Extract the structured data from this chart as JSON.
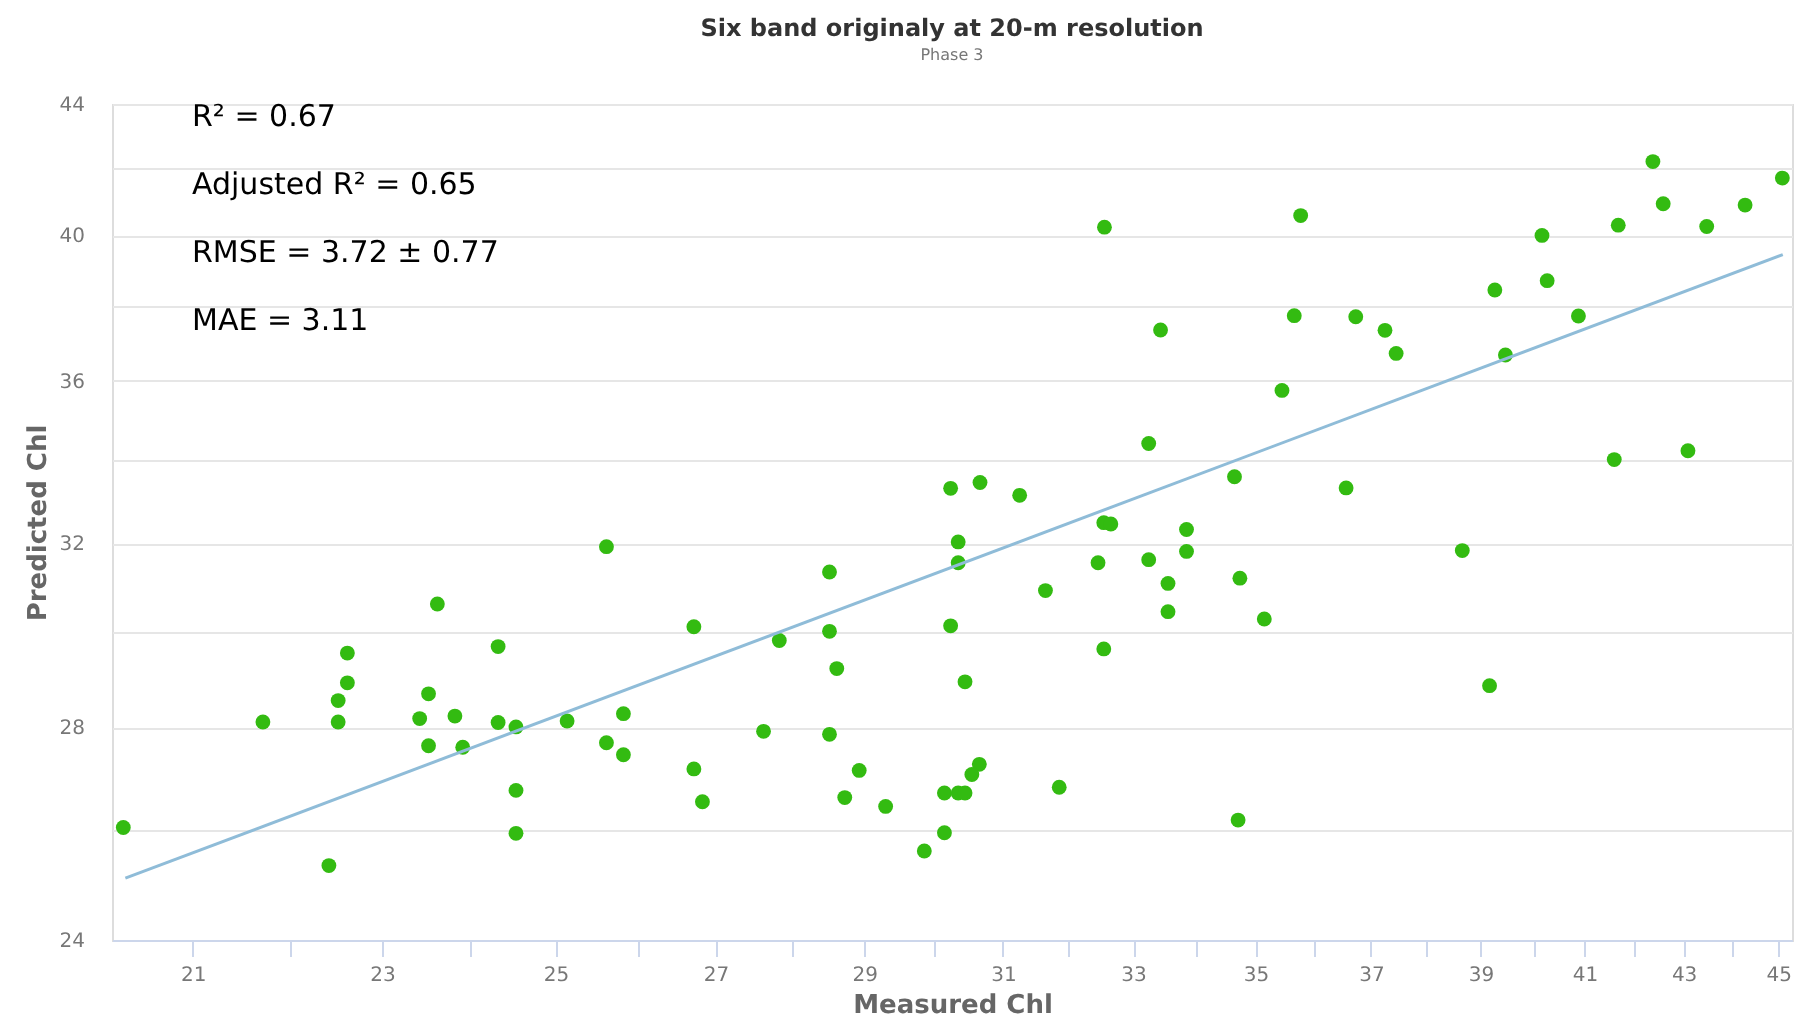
{
  "chart_data": {
    "type": "scatter",
    "title": "Six band originaly at 20-m resolution",
    "subtitle": "Phase 3",
    "xlabel": "Measured Chl",
    "ylabel": "Predicted Chl",
    "annotations": [
      "R² = 0.67",
      "Adjusted R² = 0.65",
      "RMSE = 3.72 ± 0.77",
      "MAE = 3.11"
    ],
    "log": "xy",
    "grid": "y",
    "xlim": [
      20.2,
      45.3
    ],
    "ylim": [
      24,
      44
    ],
    "xticks": [
      21,
      {
        "value": 22,
        "label": null
      },
      23,
      {
        "value": 24,
        "label": null
      },
      25,
      {
        "value": 26,
        "label": null
      },
      27,
      {
        "value": 28,
        "label": null
      },
      29,
      {
        "value": 30,
        "label": null
      },
      31,
      {
        "value": 32,
        "label": null
      },
      33,
      {
        "value": 34,
        "label": null
      },
      35,
      {
        "value": 36,
        "label": null
      },
      37,
      {
        "value": 38,
        "label": null
      },
      39,
      {
        "value": 40,
        "label": null
      },
      41,
      {
        "value": 42,
        "label": null
      },
      43,
      {
        "value": 44,
        "label": null
      },
      45
    ],
    "yticks": [
      24,
      {
        "value": 26,
        "label": null
      },
      28,
      {
        "value": 30,
        "label": null
      },
      32,
      {
        "value": 34,
        "label": null
      },
      36,
      {
        "value": 38,
        "label": null
      },
      40,
      {
        "value": 42,
        "label": null
      },
      44
    ],
    "series": [
      {
        "marker": "circle",
        "color": "#33bb11",
        "x": [
          20.31,
          21.72,
          22.42,
          22.52,
          22.52,
          22.62,
          22.62,
          23.42,
          23.52,
          23.52,
          23.62,
          23.82,
          23.91,
          24.32,
          24.32,
          24.53,
          24.53,
          24.53,
          25.14,
          25.62,
          25.62,
          25.83,
          25.83,
          26.72,
          26.72,
          26.83,
          27.63,
          27.84,
          28.52,
          28.52,
          28.52,
          28.62,
          28.93,
          28.73,
          29.3,
          30.23,
          30.66,
          31.25,
          32.54,
          32.65,
          30.34,
          30.34,
          32.45,
          33.86,
          33.86,
          33.25,
          31.64,
          33.56,
          34.74,
          33.56,
          35.15,
          38.66,
          30.23,
          32.54,
          30.44,
          39.17,
          30.65,
          30.54,
          30.14,
          30.34,
          30.44,
          31.85,
          30.14,
          29.85,
          34.71,
          32.55,
          33.44,
          35.77,
          35.66,
          36.73,
          37.25,
          37.45,
          35.45,
          33.25,
          34.65,
          36.56,
          39.27,
          40.17,
          40.27,
          40.88,
          39.47,
          41.67,
          42.37,
          42.58,
          43.48,
          44.29,
          45.09,
          41.59,
          43.09
        ],
        "values": [
          26.04,
          28.11,
          25.33,
          28.55,
          28.11,
          28.92,
          29.55,
          28.18,
          28.69,
          27.63,
          30.62,
          28.23,
          27.6,
          29.69,
          28.1,
          28.01,
          26.75,
          25.93,
          28.13,
          31.92,
          27.69,
          28.28,
          27.45,
          30.12,
          27.17,
          26.53,
          27.92,
          29.82,
          31.34,
          30.02,
          27.86,
          29.22,
          27.14,
          26.61,
          26.44,
          33.3,
          33.44,
          33.13,
          32.48,
          32.45,
          32.03,
          31.55,
          31.55,
          32.32,
          31.81,
          31.62,
          30.92,
          31.08,
          31.2,
          30.45,
          30.29,
          31.83,
          30.14,
          29.64,
          28.94,
          28.86,
          27.26,
          27.06,
          26.7,
          26.7,
          26.7,
          26.81,
          25.94,
          25.6,
          26.18,
          40.24,
          37.35,
          40.58,
          37.74,
          37.71,
          37.34,
          36.72,
          35.75,
          34.4,
          33.58,
          33.31,
          38.45,
          40.0,
          38.71,
          37.73,
          36.68,
          40.3,
          42.2,
          40.93,
          40.26,
          40.89,
          41.7,
          34.0,
          34.22
        ]
      },
      {
        "type": "line",
        "marker": "none",
        "color": "#8fbcd8",
        "x": [
          20.33,
          45.1
        ],
        "values": [
          25.1,
          39.45
        ]
      }
    ]
  }
}
